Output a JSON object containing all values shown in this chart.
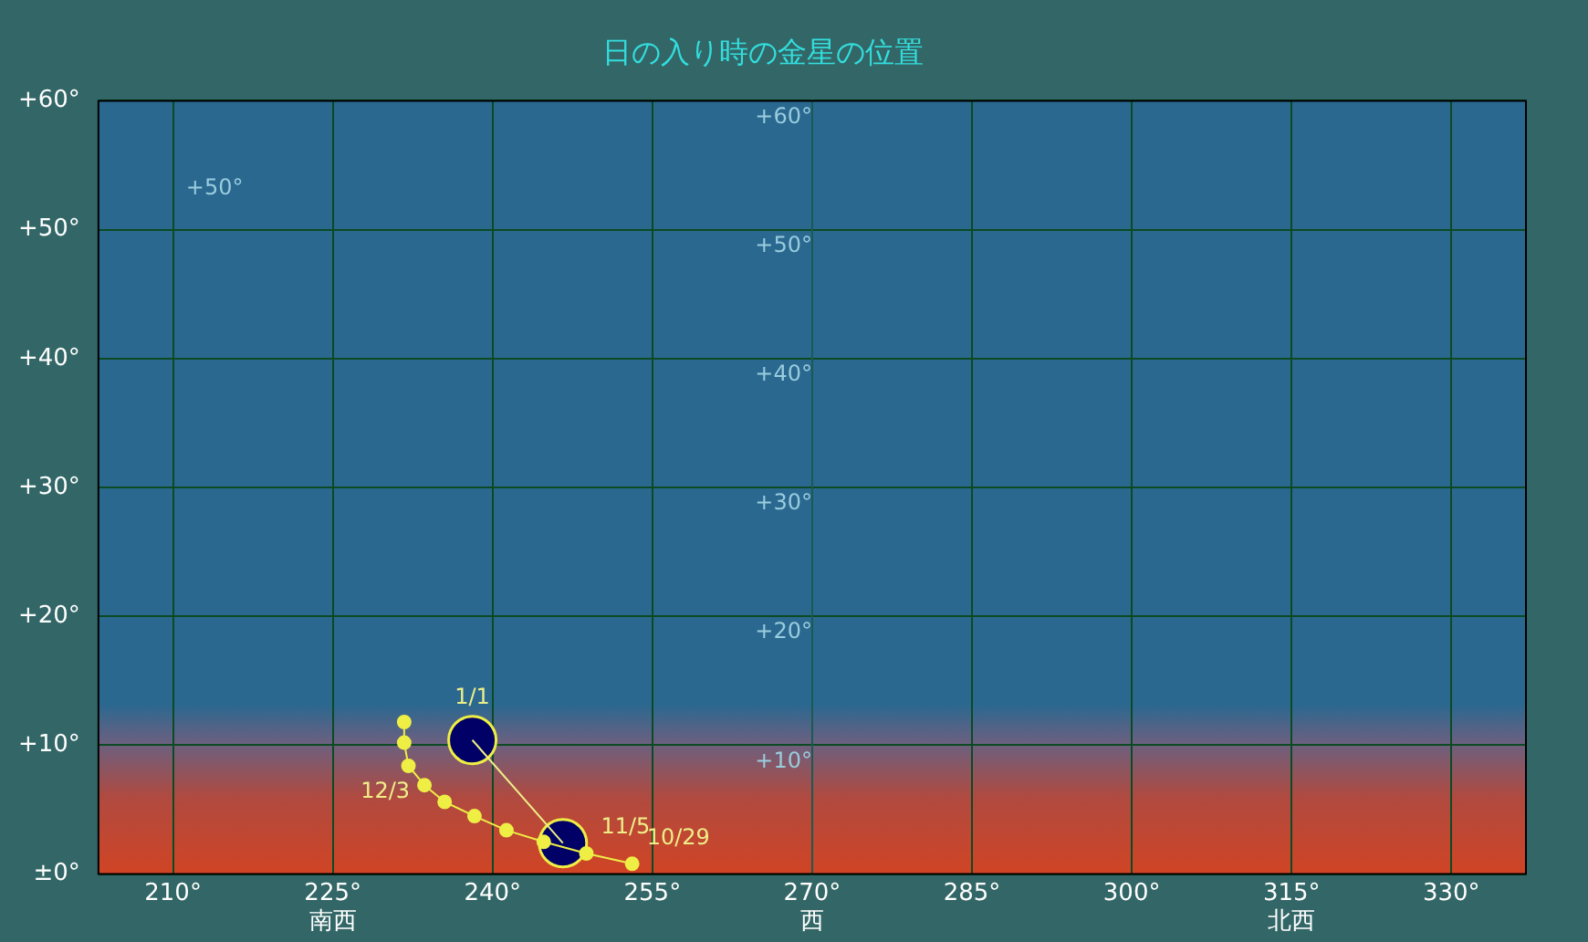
{
  "chart_data": {
    "type": "line",
    "title": "日の入り時の金星の位置",
    "xlim": [
      203,
      337
    ],
    "xticks": [
      {
        "value": 210,
        "label": "210°"
      },
      {
        "value": 225,
        "label": "225°\n南西"
      },
      {
        "value": 240,
        "label": "240°"
      },
      {
        "value": 255,
        "label": "255°"
      },
      {
        "value": 270,
        "label": "270°\n西"
      },
      {
        "value": 285,
        "label": "285°"
      },
      {
        "value": 300,
        "label": "300°"
      },
      {
        "value": 315,
        "label": "315°\n北西"
      },
      {
        "value": 330,
        "label": "330°"
      }
    ],
    "ylim": [
      0,
      60
    ],
    "yticks": [
      {
        "value": 0,
        "label": "±0°"
      },
      {
        "value": 10,
        "label": "+10°"
      },
      {
        "value": 20,
        "label": "+20°"
      },
      {
        "value": 30,
        "label": "+30°"
      },
      {
        "value": 40,
        "label": "+40°"
      },
      {
        "value": 50,
        "label": "+50°"
      },
      {
        "value": 60,
        "label": "+60°"
      }
    ],
    "y2lim": [
      0,
      60
    ],
    "y2ticks": [
      {
        "value": 10,
        "label": "+10°"
      },
      {
        "value": 20,
        "label": "+20°"
      },
      {
        "value": 30,
        "label": "+30°"
      },
      {
        "value": 40,
        "label": "+40°"
      },
      {
        "value": 50,
        "label": "+50°"
      },
      {
        "value": 60,
        "label": "+60°"
      }
    ],
    "grid": true,
    "legend": false,
    "series": [
      {
        "color": "#eeee44",
        "marker": "circle",
        "x": [
          231.7,
          231.7,
          232.1,
          233.6,
          235.5,
          238.3,
          241.3,
          244.8,
          248.8,
          253.1
        ],
        "values": [
          11.8,
          10.2,
          8.4,
          6.9,
          5.6,
          4.5,
          3.4,
          2.5,
          1.6,
          0.8
        ]
      },
      {
        "color": "#eeee88",
        "marker": "none",
        "x": [
          238.1,
          246.6
        ],
        "values": [
          10.4,
          2.4
        ]
      },
      {
        "type": "bubble",
        "color": "#000066",
        "x": [
          238.1,
          246.6
        ],
        "values": [
          10.4,
          2.4
        ],
        "sizes": [
          1,
          1
        ]
      }
    ],
    "annotations": [
      {
        "text": "1/1",
        "x": 238.1,
        "y": 10.4
      },
      {
        "text": "12/3",
        "x": 233.6,
        "y": 6.9
      },
      {
        "text": "11/5",
        "x": 248.8,
        "y": 1.6
      },
      {
        "text": "10/29",
        "x": 253.1,
        "y": 0.8
      },
      "+50°"
    ]
  }
}
